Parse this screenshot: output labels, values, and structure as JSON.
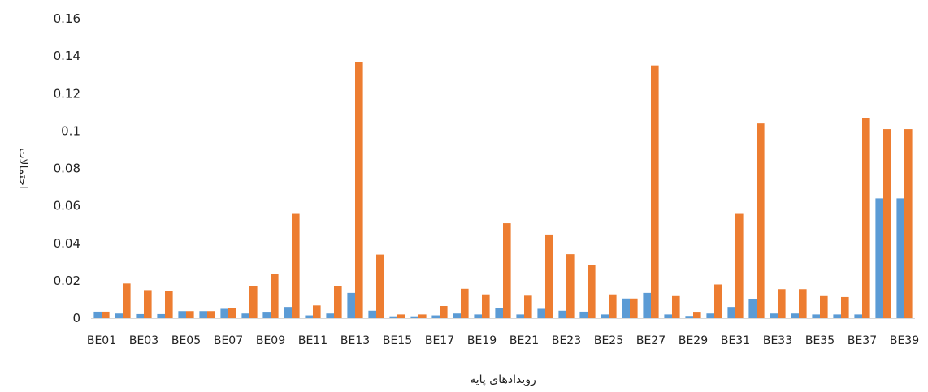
{
  "chart_data": {
    "type": "bar",
    "title": "",
    "xlabel": "رویدادهای پایه",
    "ylabel": "احتمالات",
    "ylim": [
      0,
      0.16
    ],
    "yticks": [
      0,
      0.02,
      0.04,
      0.06,
      0.08,
      0.1,
      0.12,
      0.14,
      0.16
    ],
    "ytick_labels": [
      "0",
      "0.02",
      "0.04",
      "0.06",
      "0.08",
      "0.1",
      "0.12",
      "0.14",
      "0.16"
    ],
    "grid": false,
    "legend": "none",
    "categories": [
      "BE01",
      "BE02",
      "BE03",
      "BE04",
      "BE05",
      "BE06",
      "BE07",
      "BE08",
      "BE09",
      "BE10",
      "BE11",
      "BE12",
      "BE13",
      "BE14",
      "BE15",
      "BE16",
      "BE17",
      "BE18",
      "BE19",
      "BE20",
      "BE21",
      "BE22",
      "BE23",
      "BE24",
      "BE25",
      "BE26",
      "BE27",
      "BE28",
      "BE29",
      "BE30",
      "BE31",
      "BE32",
      "BE33",
      "BE34",
      "BE35",
      "BE36",
      "BE37",
      "BE38",
      "BE39"
    ],
    "visible_category_labels": [
      "BE01",
      "BE03",
      "BE05",
      "BE07",
      "BE09",
      "BE11",
      "BE13",
      "BE15",
      "BE17",
      "BE19",
      "BE21",
      "BE23",
      "BE25",
      "BE27",
      "BE29",
      "BE31",
      "BE33",
      "BE35",
      "BE37",
      "BE39"
    ],
    "series": [
      {
        "color": "#5b9bd5",
        "values": [
          0.0035,
          0.0025,
          0.0022,
          0.0022,
          0.0038,
          0.0038,
          0.005,
          0.0025,
          0.003,
          0.006,
          0.0015,
          0.0025,
          0.0135,
          0.004,
          0.001,
          0.001,
          0.0015,
          0.0025,
          0.002,
          0.0055,
          0.002,
          0.005,
          0.004,
          0.0035,
          0.002,
          0.0105,
          0.0135,
          0.002,
          0.0012,
          0.0025,
          0.006,
          0.0103,
          0.0025,
          0.0025,
          0.002,
          0.002,
          0.002,
          0.064,
          0.064
        ]
      },
      {
        "color": "#ed7d31",
        "values": [
          0.0035,
          0.0185,
          0.015,
          0.0145,
          0.0038,
          0.0038,
          0.0055,
          0.017,
          0.0237,
          0.0557,
          0.0068,
          0.017,
          0.137,
          0.034,
          0.002,
          0.002,
          0.0065,
          0.0157,
          0.0127,
          0.0507,
          0.012,
          0.0447,
          0.0342,
          0.0285,
          0.0127,
          0.0105,
          0.135,
          0.0118,
          0.003,
          0.018,
          0.0557,
          0.104,
          0.0155,
          0.0155,
          0.0118,
          0.0113,
          0.107,
          0.101,
          0.101
        ]
      }
    ]
  }
}
